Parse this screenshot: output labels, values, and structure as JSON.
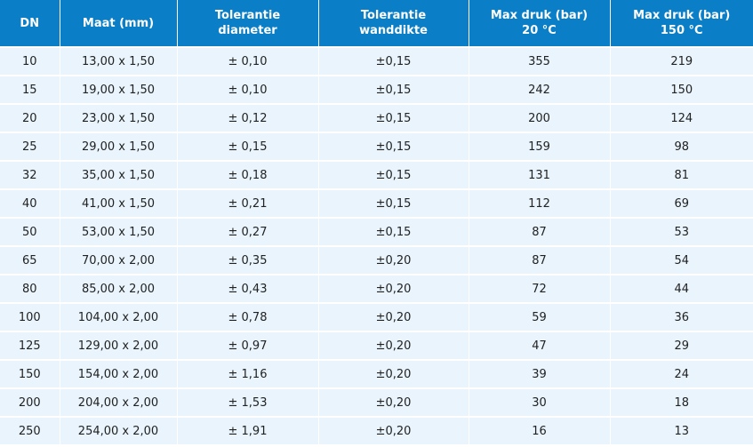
{
  "table": {
    "headers": [
      {
        "lines": [
          "DN"
        ]
      },
      {
        "lines": [
          "Maat (mm)"
        ]
      },
      {
        "lines": [
          "Tolerantie",
          "diameter"
        ]
      },
      {
        "lines": [
          "Tolerantie",
          "wanddikte"
        ]
      },
      {
        "lines": [
          "Max druk (bar)",
          "20 °C"
        ]
      },
      {
        "lines": [
          "Max druk (bar)",
          "150 °C"
        ]
      }
    ],
    "rows": [
      [
        "10",
        "13,00 x 1,50",
        "± 0,10",
        "±0,15",
        "355",
        "219"
      ],
      [
        "15",
        "19,00 x 1,50",
        "± 0,10",
        "±0,15",
        "242",
        "150"
      ],
      [
        "20",
        "23,00 x 1,50",
        "± 0,12",
        "±0,15",
        "200",
        "124"
      ],
      [
        "25",
        "29,00 x 1,50",
        "± 0,15",
        "±0,15",
        "159",
        "98"
      ],
      [
        "32",
        "35,00 x 1,50",
        "± 0,18",
        "±0,15",
        "131",
        "81"
      ],
      [
        "40",
        "41,00 x 1,50",
        "± 0,21",
        "±0,15",
        "112",
        "69"
      ],
      [
        "50",
        "53,00 x 1,50",
        "± 0,27",
        "±0,15",
        "87",
        "53"
      ],
      [
        "65",
        "70,00 x 2,00",
        "± 0,35",
        "±0,20",
        "87",
        "54"
      ],
      [
        "80",
        "85,00 x 2,00",
        "± 0,43",
        "±0,20",
        "72",
        "44"
      ],
      [
        "100",
        "104,00 x 2,00",
        "± 0,78",
        "±0,20",
        "59",
        "36"
      ],
      [
        "125",
        "129,00 x 2,00",
        "± 0,97",
        "±0,20",
        "47",
        "29"
      ],
      [
        "150",
        "154,00 x 2,00",
        "± 1,16",
        "±0,20",
        "39",
        "24"
      ],
      [
        "200",
        "204,00 x 2,00",
        "± 1,53",
        "±0,20",
        "30",
        "18"
      ],
      [
        "250",
        "254,00 x 2,00",
        "± 1,91",
        "±0,20",
        "16",
        "13"
      ]
    ]
  },
  "colors": {
    "header_bg": "#0a7fc7",
    "row_bg": "#e9f4fc"
  }
}
